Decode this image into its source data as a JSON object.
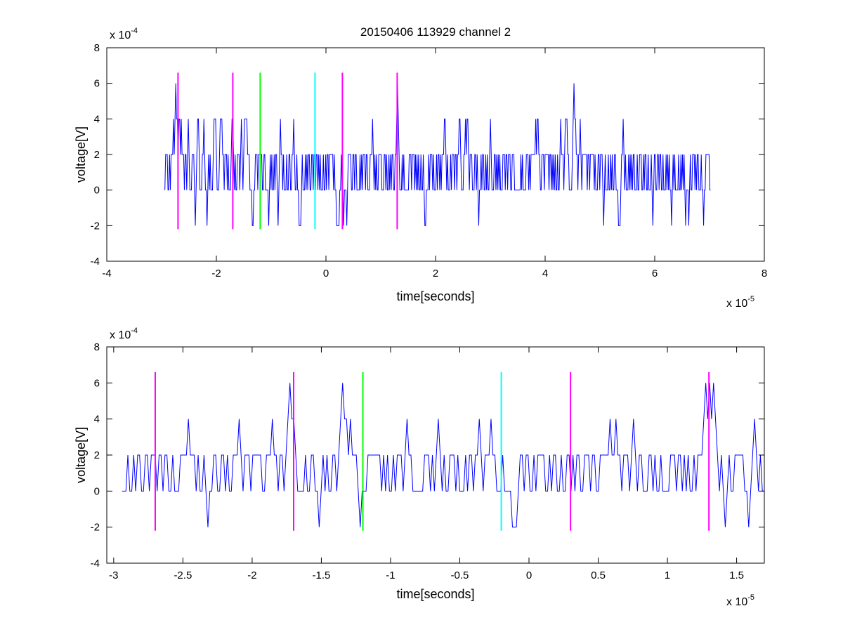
{
  "figure": {
    "title": "20150406 113929 channel 2",
    "colors": {
      "signal": "#0000ff",
      "magenta": "#ff00ff",
      "green": "#00ff00",
      "cyan": "#00ffff",
      "axes": "#000000"
    }
  },
  "chart_data": [
    {
      "type": "line",
      "title": "20150406 113929 channel 2",
      "xlabel": "time[seconds]",
      "ylabel": "voltage[V]",
      "x_exponent": "x 10",
      "x_exponent_power": "-5",
      "y_exponent": "x 10",
      "y_exponent_power": "-4",
      "x_unit_scale": 1e-05,
      "y_unit_scale": 0.0001,
      "xlim": [
        -4e-05,
        8e-05
      ],
      "ylim": [
        -0.0004,
        0.0008
      ],
      "xticks": [
        -4e-05,
        -2e-05,
        0,
        2e-05,
        4e-05,
        6e-05,
        8e-05
      ],
      "xtick_labels": [
        "-4",
        "-2",
        "0",
        "2",
        "4",
        "6",
        "8"
      ],
      "yticks": [
        -0.0004,
        -0.0002,
        0,
        0.0002,
        0.0004,
        0.0006,
        0.0008
      ],
      "ytick_labels": [
        "-4",
        "-2",
        "0",
        "2",
        "4",
        "6",
        "8"
      ],
      "grid": false,
      "signal": {
        "x_start": -2.94e-05,
        "x_end": 7.02e-05,
        "levels": [
          -0.0002,
          0,
          0.0002,
          0.0004,
          0.0006
        ],
        "dominant_levels": [
          0,
          0.0002
        ],
        "color": "#0000ff"
      },
      "markers": [
        {
          "x": -2.7e-05,
          "color": "#ff00ff",
          "y_range": [
            -0.00022,
            0.00066
          ]
        },
        {
          "x": -1.7e-05,
          "color": "#ff00ff",
          "y_range": [
            -0.00022,
            0.00066
          ]
        },
        {
          "x": -1.2e-05,
          "color": "#00ff00",
          "y_range": [
            -0.00022,
            0.00066
          ]
        },
        {
          "x": -2e-06,
          "color": "#00ffff",
          "y_range": [
            -0.00022,
            0.00066
          ]
        },
        {
          "x": 3e-06,
          "color": "#ff00ff",
          "y_range": [
            -0.00022,
            0.00066
          ]
        },
        {
          "x": 1.3e-05,
          "color": "#ff00ff",
          "y_range": [
            -0.00022,
            0.00066
          ]
        }
      ]
    },
    {
      "type": "line",
      "title": "",
      "xlabel": "time[seconds]",
      "ylabel": "voltage[V]",
      "x_exponent": "x 10",
      "x_exponent_power": "-5",
      "y_exponent": "x 10",
      "y_exponent_power": "-4",
      "x_unit_scale": 1e-05,
      "y_unit_scale": 0.0001,
      "xlim": [
        -3.05e-05,
        1.7e-05
      ],
      "ylim": [
        -0.0004,
        0.0008
      ],
      "xticks": [
        -3e-05,
        -2.5e-05,
        -2e-05,
        -1.5e-05,
        -1e-05,
        -5e-06,
        0,
        5e-06,
        1e-05,
        1.5e-05
      ],
      "xtick_labels": [
        "-3",
        "-2.5",
        "-2",
        "-1.5",
        "-1",
        "-0.5",
        "0",
        "0.5",
        "1",
        "1.5"
      ],
      "yticks": [
        -0.0004,
        -0.0002,
        0,
        0.0002,
        0.0004,
        0.0006,
        0.0008
      ],
      "ytick_labels": [
        "-4",
        "-2",
        "0",
        "2",
        "4",
        "6",
        "8"
      ],
      "grid": false,
      "signal": {
        "x_start": -2.94e-05,
        "x_end": 1.7e-05,
        "levels": [
          -0.0002,
          0,
          0.0002,
          0.0004,
          0.0006
        ],
        "dominant_levels": [
          0,
          0.0002
        ],
        "color": "#0000ff"
      },
      "markers": [
        {
          "x": -2.7e-05,
          "color": "#ff00ff",
          "y_range": [
            -0.00022,
            0.00066
          ]
        },
        {
          "x": -1.7e-05,
          "color": "#ff00ff",
          "y_range": [
            -0.00022,
            0.00066
          ]
        },
        {
          "x": -1.2e-05,
          "color": "#00ff00",
          "y_range": [
            -0.00022,
            0.00066
          ]
        },
        {
          "x": -2e-06,
          "color": "#00ffff",
          "y_range": [
            -0.00022,
            0.00066
          ]
        },
        {
          "x": 3e-06,
          "color": "#ff00ff",
          "y_range": [
            -0.00022,
            0.00066
          ]
        },
        {
          "x": 1.3e-05,
          "color": "#ff00ff",
          "y_range": [
            -0.00022,
            0.00066
          ]
        }
      ]
    }
  ]
}
